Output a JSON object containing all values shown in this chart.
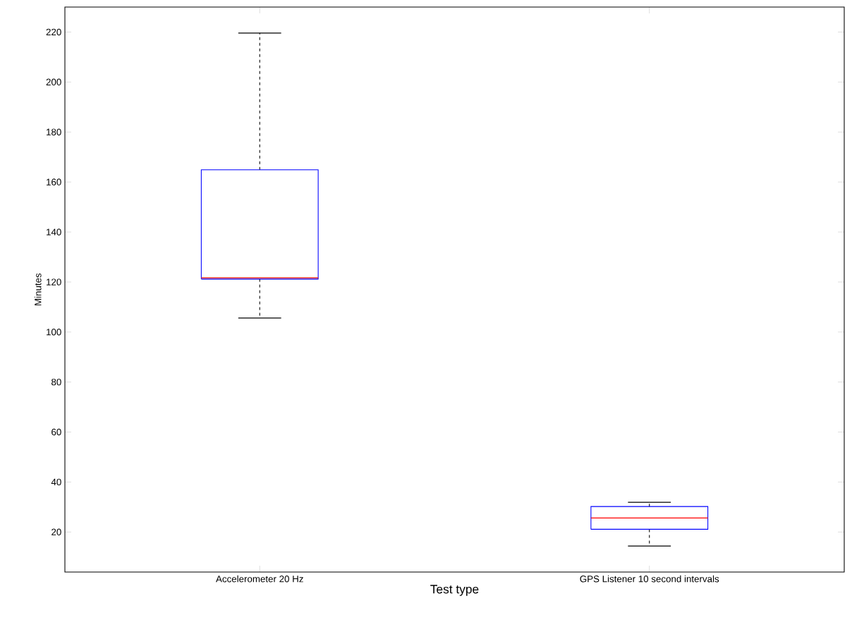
{
  "chart_data": {
    "type": "box",
    "xlabel": "Test type",
    "ylabel": "Minutes",
    "categories": [
      "Accelerometer 20 Hz",
      "GPS Listener 10 second intervals"
    ],
    "color": "#0000ff",
    "boxes": [
      {
        "low": 105.6,
        "q1": 121.2,
        "median": 121.7,
        "q3": 164.9,
        "high": 219.6
      },
      {
        "low": 14.4,
        "q1": 21.1,
        "median": 25.6,
        "q3": 30.2,
        "high": 31.9
      }
    ],
    "ylim": [
      4,
      230
    ],
    "yticks": [
      20,
      40,
      60,
      80,
      100,
      120,
      140,
      160,
      180,
      200,
      220
    ]
  }
}
